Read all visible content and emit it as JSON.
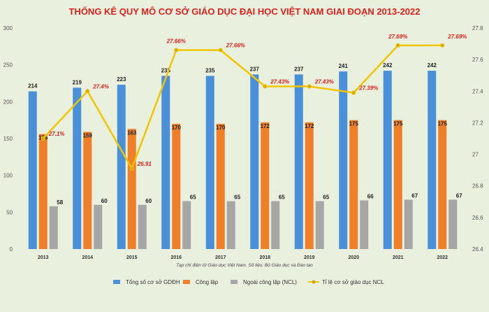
{
  "chart_data": {
    "type": "bar",
    "title": "THỐNG KÊ QUY MÔ CƠ SỞ GIÁO DỤC ĐẠI HỌC VIỆT NAM GIAI ĐOẠN 2013-2022",
    "categories": [
      "2013",
      "2014",
      "2015",
      "2016",
      "2017",
      "2018",
      "2019",
      "2020",
      "2021",
      "2022"
    ],
    "series": [
      {
        "name": "Tổng số cơ sở GDĐH",
        "type": "bar",
        "axis": "left",
        "color": "#4a90d9",
        "values": [
          214,
          219,
          223,
          235,
          235,
          237,
          237,
          241,
          242,
          242
        ]
      },
      {
        "name": "Công lập",
        "type": "bar",
        "axis": "left",
        "color": "#f07f2a",
        "values": [
          156,
          159,
          163,
          170,
          170,
          172,
          172,
          175,
          175,
          175
        ]
      },
      {
        "name": "Ngoài công lập (NCL)",
        "type": "bar",
        "axis": "left",
        "color": "#a6a6a6",
        "values": [
          58,
          60,
          60,
          65,
          65,
          65,
          65,
          66,
          67,
          67
        ]
      },
      {
        "name": "Tỉ lệ cơ sở giáo dục NCL",
        "type": "line",
        "axis": "right",
        "color": "#f2c500",
        "values": [
          27.1,
          27.4,
          26.91,
          27.66,
          27.66,
          27.43,
          27.43,
          27.39,
          27.69,
          27.69
        ],
        "labels": [
          "27.1%",
          "27.4%",
          "26.91",
          "27.66%",
          "27.66%",
          "27.43%",
          "27.43%",
          "27.39%",
          "27.69%",
          "27.69%"
        ]
      }
    ],
    "left_ticks": [
      "0",
      "50",
      "100",
      "150",
      "200",
      "250",
      "300"
    ],
    "left_ylim": [
      0,
      300
    ],
    "right_ticks": [
      "26.4",
      "26.6",
      "26.8",
      "27",
      "27.2",
      "27.4",
      "27.6",
      "27.8"
    ],
    "right_ylim": [
      26.4,
      27.8
    ],
    "source_note": "Tạp chí điện tử Giáo dục Việt Nam. Số liệu: Bộ Giáo dục và Đào tạo",
    "grid": false,
    "legend_position": "bottom"
  }
}
